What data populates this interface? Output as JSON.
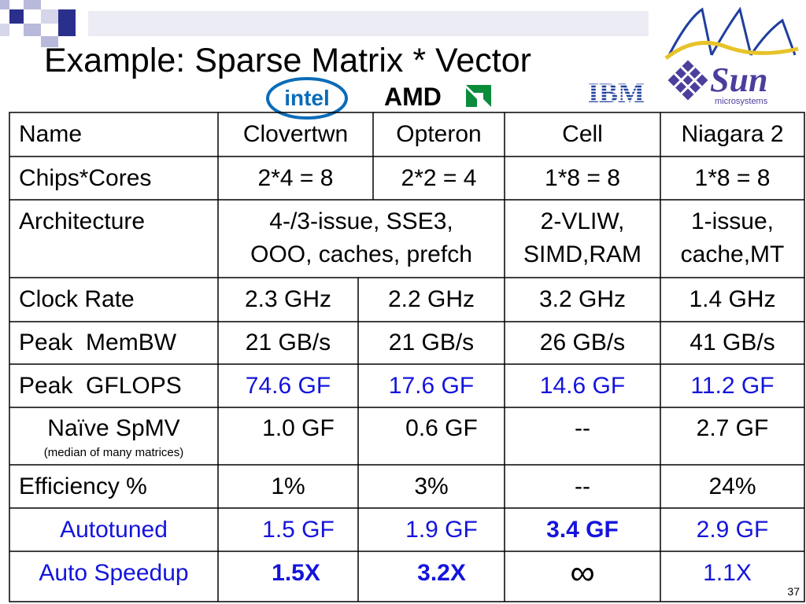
{
  "slide": {
    "title": "Example: Sparse Matrix * Vector",
    "page_number": "37"
  },
  "logos": {
    "intel": "intel",
    "amd": "AMD",
    "ibm": "IBM",
    "sun": "Sun",
    "sun_sub": "microsystems"
  },
  "table": {
    "header": [
      "Name",
      "Clovertwn",
      "Opteron",
      "Cell",
      "Niagara 2"
    ],
    "chips_cores": [
      "Chips*Cores",
      "2*4 = 8",
      "2*2 = 4",
      "1*8 = 8",
      "1*8 = 8"
    ],
    "architecture": {
      "label": "Architecture",
      "x86_line1": "4-/3-issue, SSE3,",
      "x86_line2": "OOO, caches, prefch",
      "cell_line1": "2-VLIW,",
      "cell_line2": "SIMD,RAM",
      "niagara_line1": "1-issue,",
      "niagara_line2": "cache,MT"
    },
    "clock_rate": [
      "Clock Rate",
      "2.3 GHz",
      "2.2 GHz",
      "3.2 GHz",
      "1.4 GHz"
    ],
    "peak_membw": [
      "Peak  MemBW",
      "21 GB/s",
      "21 GB/s",
      "26 GB/s",
      "41 GB/s"
    ],
    "peak_gflops": [
      "Peak  GFLOPS",
      "74.6 GF",
      "17.6 GF",
      "14.6 GF",
      "11.2 GF"
    ],
    "naive_spmv": {
      "label": "Naïve SpMV",
      "sublabel": "(median of many matrices)",
      "values": [
        "1.0 GF",
        "0.6 GF",
        "--",
        "2.7 GF"
      ]
    },
    "efficiency": [
      "Efficiency %",
      "1%",
      "3%",
      "--",
      "24%"
    ],
    "autotuned": [
      "Autotuned",
      "1.5 GF",
      "1.9 GF",
      "3.4 GF",
      "2.9 GF"
    ],
    "auto_speedup": [
      "Auto Speedup",
      "1.5X",
      "3.2X",
      "∞",
      "1.1X"
    ]
  },
  "colors": {
    "accent_blue": "#1414dc",
    "navy": "#2b2f8c"
  }
}
